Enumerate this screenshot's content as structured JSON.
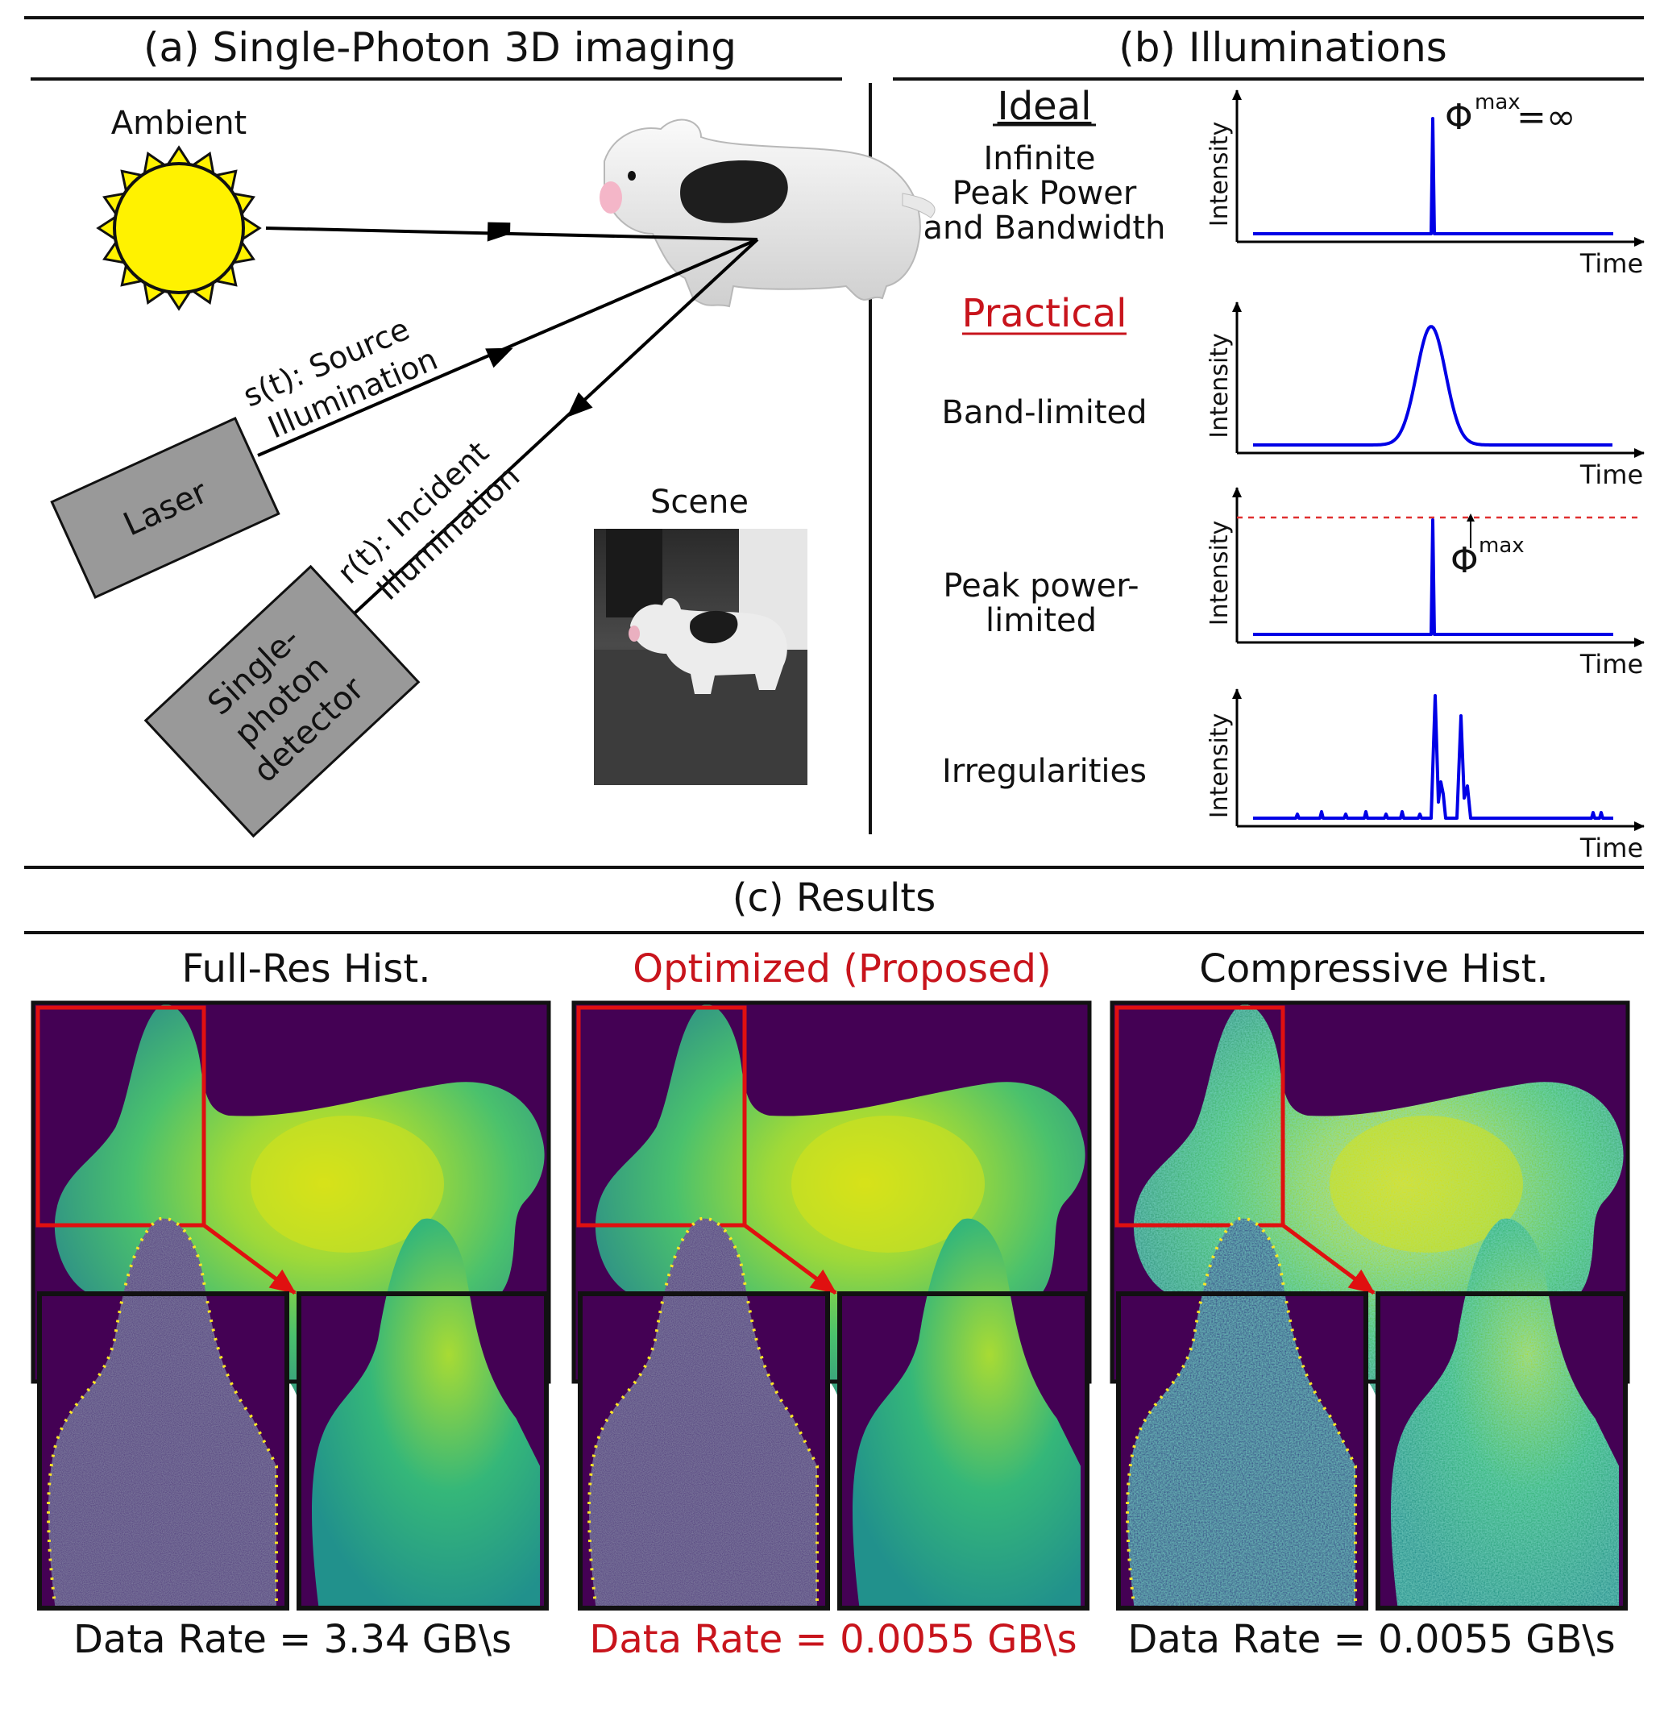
{
  "panel_a": {
    "title": "(a) Single-Photon 3D imaging",
    "ambient_label": "Ambient",
    "laser_label": "Laser",
    "source_label_1": "s(t): Source",
    "source_label_2": "Illumination",
    "incident_label_1": "r(t): Incident",
    "incident_label_2": "Illumination",
    "detector_line_1": "Single-",
    "detector_line_2": "photon",
    "detector_line_3": "detector",
    "scene_label": "Scene"
  },
  "panel_b": {
    "title": "(b) Illuminations",
    "ideal_heading": "Ideal",
    "ideal_line_1": "Infinite",
    "ideal_line_2": "Peak Power",
    "ideal_line_3": "and Bandwidth",
    "phi_infinite": "Φ",
    "phi_infinite_sup": "max",
    "phi_infinite_eq": "=∞",
    "practical_heading": "Practical",
    "band_limited": "Band-limited",
    "peak_line_1": "Peak power-",
    "peak_line_2": "limited",
    "phi_max": "Φ",
    "phi_max_sup": "max",
    "irregularities": "Irregularities",
    "y_axis": "Intensity",
    "x_axis": "Time"
  },
  "panel_c": {
    "title": "(c) Results",
    "methods": [
      {
        "title": "Full-Res Hist.",
        "data_rate": "Data Rate = 3.34 GB\\s",
        "highlight": false,
        "noise": "low"
      },
      {
        "title": "Optimized (Proposed)",
        "data_rate": "Data Rate = 0.0055 GB\\s",
        "highlight": true,
        "noise": "low"
      },
      {
        "title": "Compressive Hist.",
        "data_rate": "Data Rate = 0.0055 GB\\s",
        "highlight": false,
        "noise": "high"
      }
    ]
  },
  "colors": {
    "accent_red": "#c8141c",
    "signal_blue": "#0000e6",
    "depth_bg": "#440154",
    "depth_low": "#26828e",
    "depth_mid": "#35b779",
    "depth_high": "#d7e219",
    "sun_fill": "#fff200",
    "device_gray": "#999999"
  }
}
